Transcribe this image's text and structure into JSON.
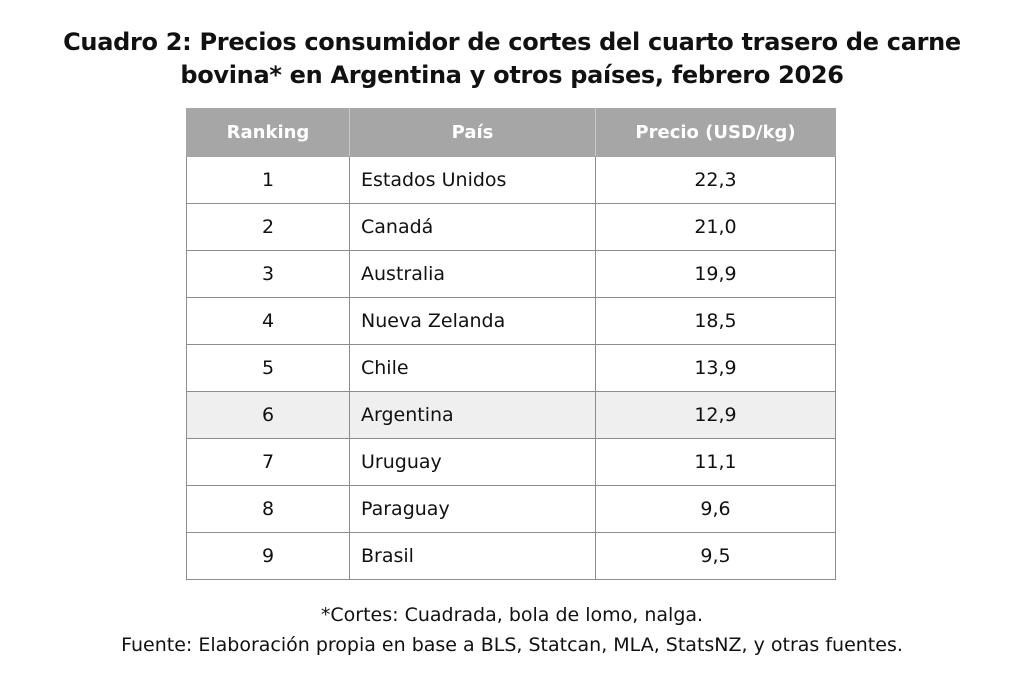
{
  "title": {
    "line1": "Cuadro 2: Precios consumidor de cortes del cuarto trasero de carne",
    "line2": "bovina*  en Argentina y otros países, febrero 2026"
  },
  "chart_data": {
    "type": "table",
    "columns": [
      "Ranking",
      "País",
      "Precio (USD/kg)"
    ],
    "rows": [
      {
        "rank": "1",
        "country": "Estados Unidos",
        "price": "22,3"
      },
      {
        "rank": "2",
        "country": "Canadá",
        "price": "21,0"
      },
      {
        "rank": "3",
        "country": "Australia",
        "price": "19,9"
      },
      {
        "rank": "4",
        "country": "Nueva Zelanda",
        "price": "18,5"
      },
      {
        "rank": "5",
        "country": "Chile",
        "price": "13,9"
      },
      {
        "rank": "6",
        "country": "Argentina",
        "price": "12,9"
      },
      {
        "rank": "7",
        "country": "Uruguay",
        "price": "11,1"
      },
      {
        "rank": "8",
        "country": "Paraguay",
        "price": "9,6"
      },
      {
        "rank": "9",
        "country": "Brasil",
        "price": "9,5"
      }
    ],
    "highlighted_country": "Argentina"
  },
  "colors": {
    "header_bg": "#a6a6a6",
    "header_text": "#ffffff",
    "highlight_row_bg": "#efefef",
    "grid": "#8c8c8c"
  },
  "notes": {
    "footnote": "*Cortes: Cuadrada, bola de lomo, nalga.",
    "source": "Fuente: Elaboración propia en base a BLS, Statcan, MLA, StatsNZ, y otras fuentes."
  }
}
